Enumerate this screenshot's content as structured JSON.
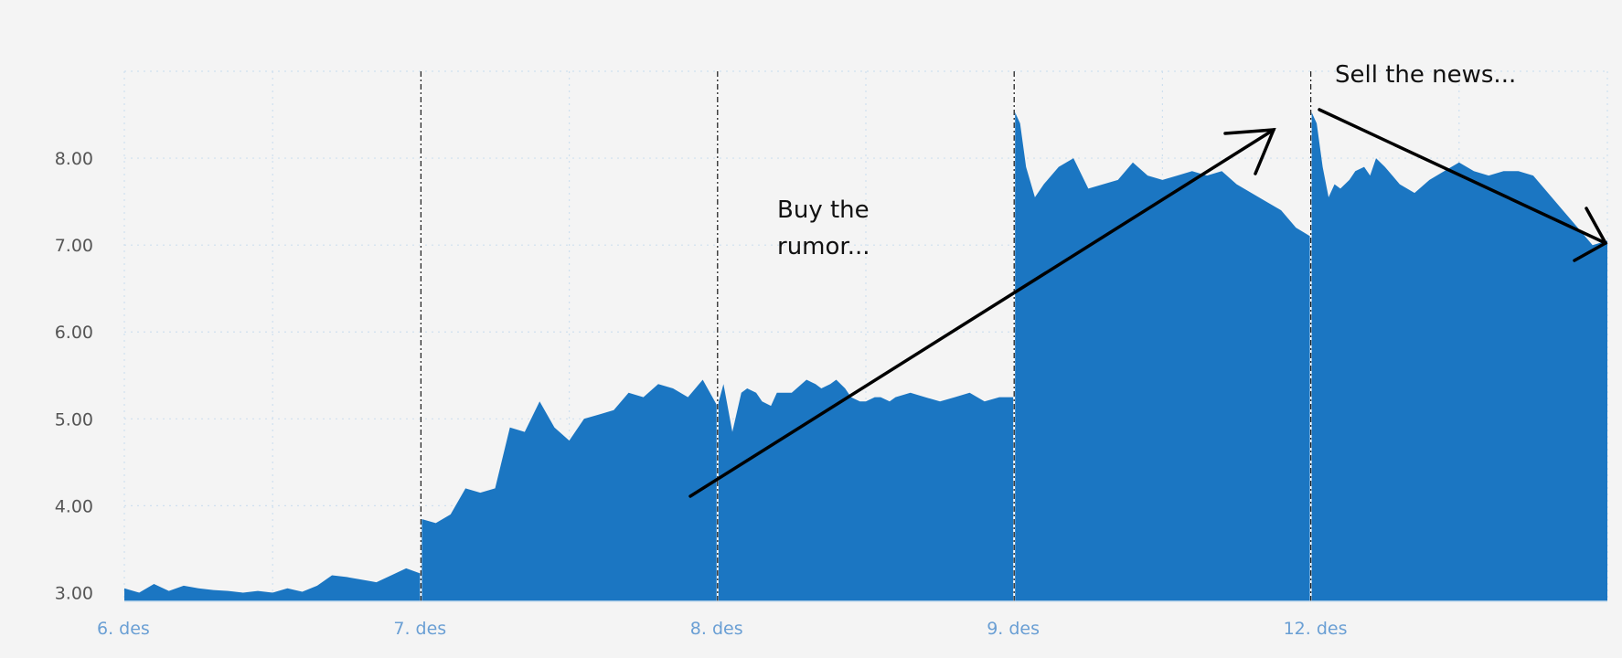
{
  "chart_data": {
    "type": "area",
    "title": "",
    "xlabel": "",
    "ylabel": "",
    "ylim": [
      2.9,
      9.0
    ],
    "yticks": [
      "3.00",
      "4.00",
      "5.00",
      "6.00",
      "7.00",
      "8.00"
    ],
    "xticks": [
      "6. des",
      "7. des",
      "8. des",
      "9. des",
      "12. des"
    ],
    "grid": true,
    "color": "#1b76c2",
    "series": [
      {
        "name": "",
        "x": [
          0.0,
          0.05,
          0.1,
          0.15,
          0.2,
          0.25,
          0.3,
          0.35,
          0.4,
          0.45,
          0.5,
          0.55,
          0.6,
          0.65,
          0.7,
          0.75,
          0.8,
          0.85,
          0.9,
          0.95,
          0.999,
          1.0,
          1.05,
          1.1,
          1.15,
          1.2,
          1.25,
          1.3,
          1.35,
          1.4,
          1.45,
          1.5,
          1.55,
          1.6,
          1.65,
          1.7,
          1.75,
          1.8,
          1.85,
          1.9,
          1.95,
          1.999,
          2.0,
          2.02,
          2.05,
          2.08,
          2.1,
          2.13,
          2.15,
          2.18,
          2.2,
          2.25,
          2.3,
          2.33,
          2.35,
          2.38,
          2.4,
          2.43,
          2.45,
          2.48,
          2.5,
          2.53,
          2.55,
          2.58,
          2.6,
          2.65,
          2.7,
          2.75,
          2.8,
          2.85,
          2.9,
          2.95,
          2.999,
          3.0,
          3.02,
          3.04,
          3.07,
          3.1,
          3.15,
          3.2,
          3.25,
          3.3,
          3.35,
          3.4,
          3.45,
          3.5,
          3.55,
          3.6,
          3.65,
          3.7,
          3.75,
          3.8,
          3.85,
          3.9,
          3.95,
          3.999,
          4.0,
          4.02,
          4.04,
          4.06,
          4.08,
          4.1,
          4.13,
          4.15,
          4.18,
          4.2,
          4.22,
          4.25,
          4.3,
          4.35,
          4.4,
          4.45,
          4.5,
          4.55,
          4.6,
          4.65,
          4.7,
          4.75,
          4.8,
          4.85,
          4.9,
          4.95,
          5.0
        ],
        "values": [
          3.05,
          3.0,
          3.1,
          3.02,
          3.08,
          3.05,
          3.03,
          3.02,
          3.0,
          3.02,
          3.0,
          3.05,
          3.01,
          3.08,
          3.2,
          3.18,
          3.15,
          3.12,
          3.2,
          3.28,
          3.22,
          3.85,
          3.8,
          3.9,
          4.2,
          4.15,
          4.2,
          4.9,
          4.85,
          5.2,
          4.9,
          4.75,
          5.0,
          5.05,
          5.1,
          5.3,
          5.25,
          5.4,
          5.35,
          5.25,
          5.45,
          5.15,
          5.15,
          5.4,
          4.85,
          5.3,
          5.35,
          5.3,
          5.2,
          5.15,
          5.3,
          5.3,
          5.45,
          5.4,
          5.35,
          5.4,
          5.45,
          5.35,
          5.25,
          5.2,
          5.2,
          5.25,
          5.25,
          5.2,
          5.25,
          5.3,
          5.25,
          5.2,
          5.25,
          5.3,
          5.2,
          5.25,
          5.25,
          8.55,
          8.4,
          7.9,
          7.55,
          7.7,
          7.9,
          8.0,
          7.65,
          7.7,
          7.75,
          7.95,
          7.8,
          7.75,
          7.8,
          7.85,
          7.8,
          7.85,
          7.7,
          7.6,
          7.5,
          7.4,
          7.2,
          7.1,
          8.55,
          8.4,
          7.9,
          7.55,
          7.7,
          7.65,
          7.75,
          7.85,
          7.9,
          7.8,
          8.0,
          7.9,
          7.7,
          7.6,
          7.75,
          7.85,
          7.95,
          7.85,
          7.8,
          7.85,
          7.85,
          7.8,
          7.6,
          7.4,
          7.2,
          7.0,
          7.05
        ]
      }
    ],
    "annotations": [
      {
        "lines": [
          "Buy the",
          "rumor..."
        ]
      },
      {
        "lines": [
          "Sell the news..."
        ]
      }
    ]
  }
}
